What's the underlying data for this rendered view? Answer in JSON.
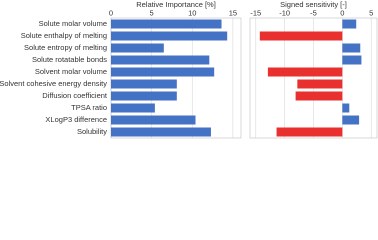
{
  "chart_data": [
    {
      "type": "hbar",
      "title": "Relative Importance [%]",
      "categories": [
        "Solute molar volume",
        "Solute enthalpy of melting",
        "Solute entropy of melting",
        "Solute rotatable bonds",
        "Solvent molar volume",
        "Solvent cohesive energy density",
        "Diffusion coefficient",
        "TPSA ratio",
        "XLogP3 difference",
        "Solubility"
      ],
      "values": [
        13.6,
        14.3,
        6.5,
        12.1,
        12.7,
        8.1,
        8.1,
        5.4,
        10.4,
        12.3
      ],
      "color": "#4472c4",
      "xlim": [
        0,
        16
      ],
      "xticks": [
        0,
        5,
        10,
        15
      ],
      "grid": true
    },
    {
      "type": "signed-hbar",
      "title": "Signed sensitivity [-]",
      "values": [
        2.4,
        -14.3,
        3.1,
        3.3,
        -12.9,
        -7.8,
        -8.1,
        1.2,
        2.9,
        -11.4
      ],
      "positive_color": "#4472c4",
      "negative_color": "#e8312f",
      "xlim": [
        -16,
        6
      ],
      "xticks": [
        -15,
        -10,
        -5,
        0,
        5
      ],
      "grid": true
    }
  ]
}
